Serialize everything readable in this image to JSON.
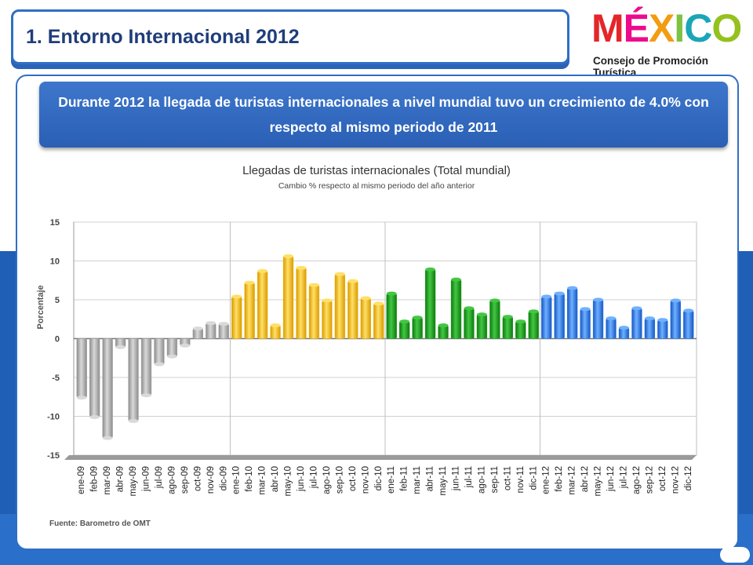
{
  "header": {
    "title": "1.   Entorno Internacional 2012"
  },
  "logo": {
    "word": "MÉXICO",
    "subtitle": "Consejo de Promoción Turística"
  },
  "banner": {
    "text": "Durante 2012 la llegada de turistas internacionales a nivel mundial tuvo un crecimiento de 4.0% con respecto al mismo periodo de 2011"
  },
  "source": "Fuente: Barometro de OMT",
  "colors": {
    "gray": "#a6a6a6",
    "yellow": "#f5b800",
    "green": "#1e9e1e",
    "blue": "#2b7be0"
  },
  "chart_data": {
    "type": "bar",
    "title": "Llegadas de turistas internacionales (Total mundial)",
    "subtitle": "Cambio % respecto al mismo periodo del año anterior",
    "ylabel": "Porcentaje",
    "ylim": [
      -15,
      15
    ],
    "yticks": [
      15,
      10,
      5,
      0,
      -5,
      -10,
      -15
    ],
    "categories": [
      "ene-09",
      "feb-09",
      "mar-09",
      "abr-09",
      "may-09",
      "jun-09",
      "jul-09",
      "ago-09",
      "sep-09",
      "oct-09",
      "nov-09",
      "dic-09",
      "ene-10",
      "feb-10",
      "mar-10",
      "abr-10",
      "may-10",
      "jun-10",
      "jul-10",
      "ago-10",
      "sep-10",
      "oct-10",
      "nov-10",
      "dic-10",
      "ene-11",
      "feb-11",
      "mar-11",
      "abr-11",
      "may-11",
      "jun-11",
      "jul-11",
      "ago-11",
      "sep-11",
      "oct-11",
      "nov-11",
      "dic-11",
      "ene-12",
      "feb-12",
      "mar-12",
      "abr-12",
      "may-12",
      "jun-12",
      "jul-12",
      "ago-12",
      "sep-12",
      "oct-12",
      "nov-12",
      "dic-12"
    ],
    "values": [
      -7.6,
      -10.1,
      -12.8,
      -1.1,
      -10.6,
      -7.3,
      -3.3,
      -2.3,
      -0.9,
      1.3,
      2.0,
      1.9,
      5.4,
      7.2,
      8.7,
      1.7,
      10.6,
      9.1,
      6.9,
      4.9,
      8.3,
      7.4,
      5.2,
      4.5,
      5.8,
      2.2,
      2.7,
      8.9,
      1.7,
      7.6,
      3.9,
      3.1,
      4.9,
      2.8,
      2.2,
      3.5,
      5.4,
      5.8,
      6.5,
      3.8,
      5.0,
      2.6,
      1.4,
      3.9,
      2.6,
      2.4,
      4.9,
      3.6
    ],
    "groups": [
      {
        "year": "2009",
        "start": 0,
        "end": 11,
        "color": "gray"
      },
      {
        "year": "2010",
        "start": 12,
        "end": 23,
        "color": "yellow"
      },
      {
        "year": "2011",
        "start": 24,
        "end": 35,
        "color": "green"
      },
      {
        "year": "2012",
        "start": 36,
        "end": 47,
        "color": "blue"
      }
    ],
    "grid": true
  }
}
